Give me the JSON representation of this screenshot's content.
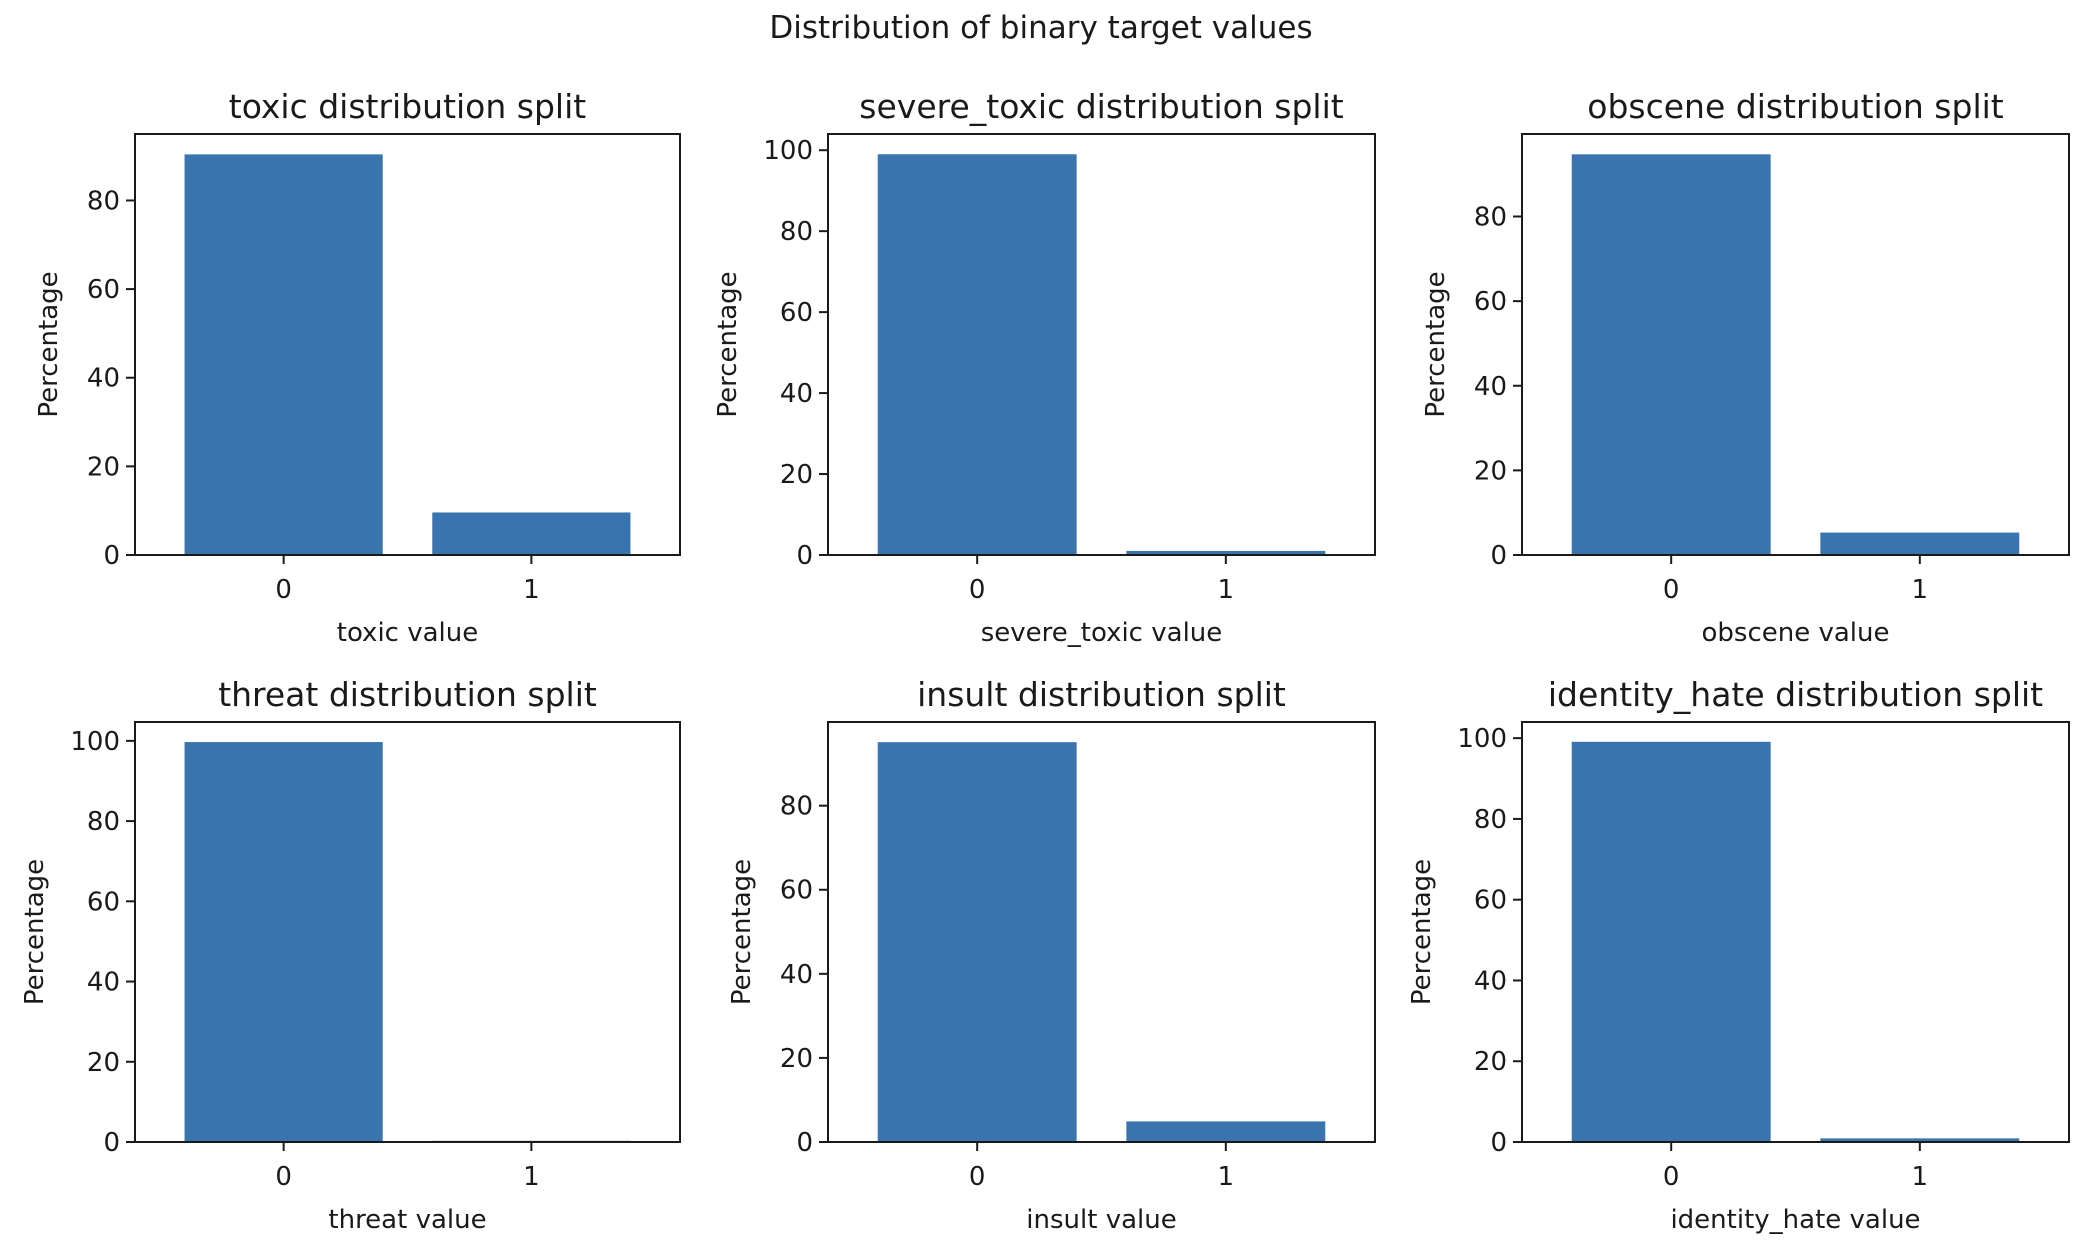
{
  "figure_title": "Distribution of binary target values",
  "colors": {
    "bar": "#3A74AE",
    "axis": "#1a1a1a",
    "background": "#ffffff"
  },
  "chart_data": [
    {
      "type": "bar",
      "title": "toxic distribution split",
      "xlabel": "toxic value",
      "ylabel": "Percentage",
      "categories": [
        "0",
        "1"
      ],
      "values": [
        90.4,
        9.6
      ],
      "ylim": [
        0,
        95
      ],
      "yticks": [
        0,
        20,
        40,
        60,
        80
      ]
    },
    {
      "type": "bar",
      "title": "severe_toxic distribution split",
      "xlabel": "severe_toxic value",
      "ylabel": "Percentage",
      "categories": [
        "0",
        "1"
      ],
      "values": [
        99.0,
        1.0
      ],
      "ylim": [
        0,
        104
      ],
      "yticks": [
        0,
        20,
        40,
        60,
        80,
        100
      ]
    },
    {
      "type": "bar",
      "title": "obscene distribution split",
      "xlabel": "obscene value",
      "ylabel": "Percentage",
      "categories": [
        "0",
        "1"
      ],
      "values": [
        94.7,
        5.3
      ],
      "ylim": [
        0,
        99.5
      ],
      "yticks": [
        0,
        20,
        40,
        60,
        80
      ]
    },
    {
      "type": "bar",
      "title": "threat distribution split",
      "xlabel": "threat value",
      "ylabel": "Percentage",
      "categories": [
        "0",
        "1"
      ],
      "values": [
        99.7,
        0.3
      ],
      "ylim": [
        0,
        104.7
      ],
      "yticks": [
        0,
        20,
        40,
        60,
        80,
        100
      ]
    },
    {
      "type": "bar",
      "title": "insult distribution split",
      "xlabel": "insult value",
      "ylabel": "Percentage",
      "categories": [
        "0",
        "1"
      ],
      "values": [
        95.1,
        4.9
      ],
      "ylim": [
        0,
        99.9
      ],
      "yticks": [
        0,
        20,
        40,
        60,
        80
      ]
    },
    {
      "type": "bar",
      "title": "identity_hate distribution split",
      "xlabel": "identity_hate value",
      "ylabel": "Percentage",
      "categories": [
        "0",
        "1"
      ],
      "values": [
        99.1,
        0.9
      ],
      "ylim": [
        0,
        104
      ],
      "yticks": [
        0,
        20,
        40,
        60,
        80,
        100
      ]
    }
  ]
}
